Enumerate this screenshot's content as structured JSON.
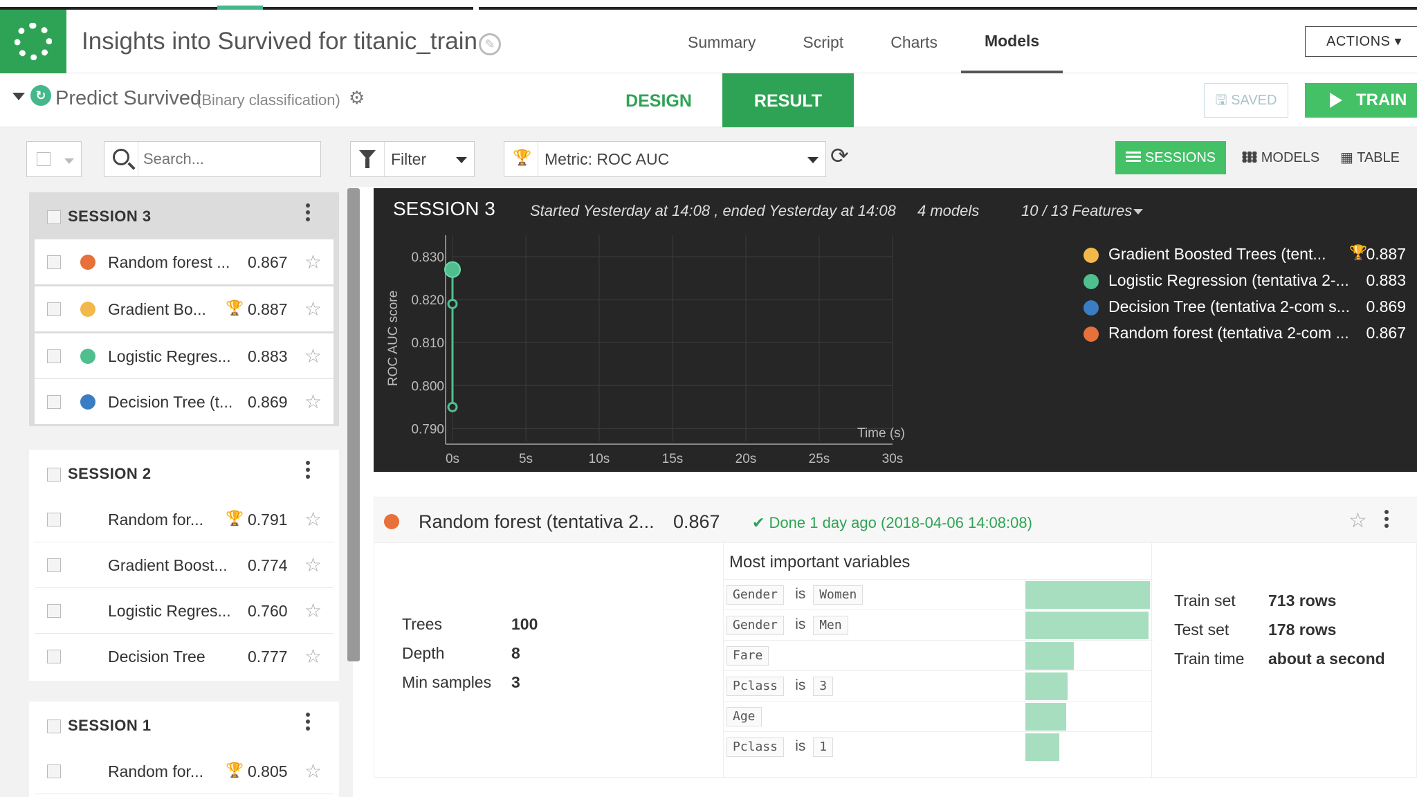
{
  "header": {
    "title": "Insights into Survived for titanic_train",
    "tabs": [
      {
        "label": "Summary",
        "active": false
      },
      {
        "label": "Script",
        "active": false
      },
      {
        "label": "Charts",
        "active": false
      },
      {
        "label": "Models",
        "active": true
      }
    ],
    "actions_label": "ACTIONS ▾"
  },
  "subheader": {
    "title": "Predict Survived",
    "subtitle": "(Binary classification)",
    "design_tab": "DESIGN",
    "result_tab": "RESULT",
    "saved_label": "SAVED",
    "train_label": "TRAIN"
  },
  "toolbar": {
    "search_placeholder": "Search...",
    "filter_label": "Filter",
    "metric_label": "Metric: ROC AUC",
    "view_sessions": "SESSIONS",
    "view_models": "MODELS",
    "view_table": "TABLE"
  },
  "sessions": [
    {
      "name": "SESSION 3",
      "models": [
        {
          "name": "Random forest ...",
          "score": "0.867",
          "color": "#e8703a",
          "best": false
        },
        {
          "name": "Gradient Bo...",
          "score": "0.887",
          "color": "#f2b84b",
          "best": true
        },
        {
          "name": "Logistic Regres...",
          "score": "0.883",
          "color": "#4fbf8f",
          "best": false
        },
        {
          "name": "Decision Tree (t...",
          "score": "0.869",
          "color": "#3b7dc4",
          "best": false
        }
      ]
    },
    {
      "name": "SESSION 2",
      "models": [
        {
          "name": "Random for...",
          "score": "0.791",
          "best": true
        },
        {
          "name": "Gradient Boost...",
          "score": "0.774",
          "best": false
        },
        {
          "name": "Logistic Regres...",
          "score": "0.760",
          "best": false
        },
        {
          "name": "Decision Tree",
          "score": "0.777",
          "best": false
        }
      ]
    },
    {
      "name": "SESSION 1",
      "models": [
        {
          "name": "Random for...",
          "score": "0.805",
          "best": true
        }
      ]
    }
  ],
  "chart_panel": {
    "title": "SESSION 3",
    "started": "Started Yesterday at 14:08 , ended Yesterday at 14:08",
    "models_count": "4 models",
    "features": "10 / 13 Features",
    "legend": [
      {
        "name": "Gradient Boosted Trees (tent...",
        "score": "0.887",
        "color": "#f2b84b",
        "best": true
      },
      {
        "name": "Logistic Regression (tentativa 2-...",
        "score": "0.883",
        "color": "#4fbf8f",
        "best": false
      },
      {
        "name": "Decision Tree (tentativa 2-com s...",
        "score": "0.869",
        "color": "#3b7dc4",
        "best": false
      },
      {
        "name": "Random forest (tentativa 2-com ...",
        "score": "0.867",
        "color": "#e8703a",
        "best": false
      }
    ]
  },
  "chart_data": {
    "type": "line",
    "ylabel": "ROC AUC score",
    "xlabel": "Time (s)",
    "x_ticks": [
      "0s",
      "5s",
      "10s",
      "15s",
      "20s",
      "25s",
      "30s"
    ],
    "y_ticks": [
      "0.830",
      "0.820",
      "0.810",
      "0.800",
      "0.790"
    ],
    "xlim": [
      0,
      30
    ],
    "ylim": [
      0.787,
      0.835
    ],
    "grid": true,
    "line_color": "#4fbf8f",
    "points": [
      {
        "x": 0,
        "y": 0.827,
        "highlight": true
      },
      {
        "x": 0,
        "y": 0.819,
        "highlight": false
      },
      {
        "x": 0,
        "y": 0.795,
        "highlight": false
      }
    ]
  },
  "detail": {
    "name": "Random forest (tentativa 2...",
    "score": "0.867",
    "color": "#e8703a",
    "done": "✔ Done 1 day ago (2018-04-06 14:08:08)",
    "params": [
      {
        "key": "Trees",
        "value": "100"
      },
      {
        "key": "Depth",
        "value": "8"
      },
      {
        "key": "Min samples",
        "value": "3"
      }
    ],
    "vars_title": "Most important variables",
    "variables": [
      {
        "feature": "Gender",
        "is": "is",
        "value": "Women",
        "importance": 1.0
      },
      {
        "feature": "Gender",
        "is": "is",
        "value": "Men",
        "importance": 0.99
      },
      {
        "feature": "Fare",
        "is": "",
        "value": "",
        "importance": 0.39
      },
      {
        "feature": "Pclass",
        "is": "is",
        "value": "3",
        "importance": 0.34
      },
      {
        "feature": "Age",
        "is": "",
        "value": "",
        "importance": 0.33
      },
      {
        "feature": "Pclass",
        "is": "is",
        "value": "1",
        "importance": 0.27
      }
    ],
    "sets": [
      {
        "key": "Train set",
        "value": "713 rows"
      },
      {
        "key": "Test set",
        "value": "178 rows"
      },
      {
        "key": "Train time",
        "value": "about a second"
      }
    ]
  }
}
